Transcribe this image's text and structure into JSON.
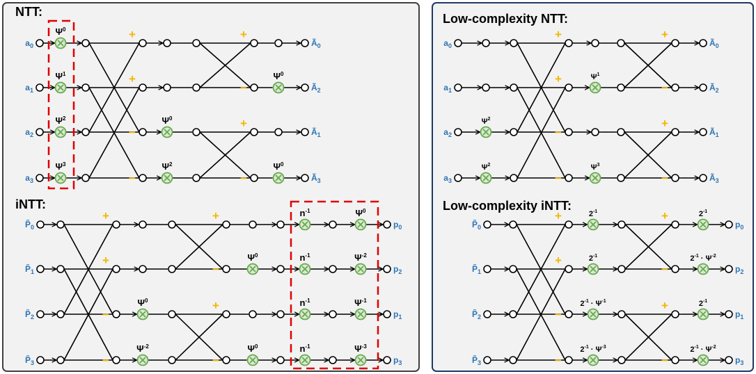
{
  "colors": {
    "panel_left_bg": "#f2f2f2",
    "panel_left_border": "#404040",
    "panel_right_bg": "#f2f2f2",
    "panel_right_border": "#1f3864",
    "label": "#2e75b6",
    "plus_minus": "#f2b800",
    "multiplier_stroke": "#6aa84f",
    "multiplier_fill": "#d9ead3",
    "highlight_box": "#e00000"
  },
  "symbols": {
    "plus": "+",
    "minus": "−"
  },
  "panels": [
    {
      "title": "NTT:",
      "inputs": [
        {
          "base": "a",
          "sub": "0"
        },
        {
          "base": "a",
          "sub": "1"
        },
        {
          "base": "a",
          "sub": "2"
        },
        {
          "base": "a",
          "sub": "3"
        }
      ],
      "outputs": [
        {
          "base": "Ã",
          "sub": "0"
        },
        {
          "base": "Ã",
          "sub": "2"
        },
        {
          "base": "Ã",
          "sub": "1"
        },
        {
          "base": "Ã",
          "sub": "3"
        }
      ],
      "coefficients": [
        {
          "base": "Ψ",
          "sup": "0"
        },
        {
          "base": "Ψ",
          "sup": "1"
        },
        {
          "base": "Ψ",
          "sup": "2"
        },
        {
          "base": "Ψ",
          "sup": "3"
        },
        {
          "base": "Ψ",
          "sup": "0"
        },
        {
          "base": "Ψ",
          "sup": "2"
        },
        {
          "base": "Ψ",
          "sup": "0"
        },
        {
          "base": "Ψ",
          "sup": "0"
        }
      ]
    },
    {
      "title": "iNTT:",
      "inputs": [
        {
          "base": "P̃",
          "sub": "0"
        },
        {
          "base": "P̃",
          "sub": "1"
        },
        {
          "base": "P̃",
          "sub": "2"
        },
        {
          "base": "P̃",
          "sub": "3"
        }
      ],
      "outputs": [
        {
          "base": "p",
          "sub": "0"
        },
        {
          "base": "p",
          "sub": "2"
        },
        {
          "base": "p",
          "sub": "1"
        },
        {
          "base": "p",
          "sub": "3"
        }
      ],
      "coefficients": [
        {
          "base": "Ψ",
          "sup": "0"
        },
        {
          "base": "Ψ",
          "sup": "-2"
        },
        {
          "base": "Ψ",
          "sup": "0"
        },
        {
          "base": "Ψ",
          "sup": "0"
        },
        {
          "base": "n",
          "sup": "-1"
        },
        {
          "base": "n",
          "sup": "-1"
        },
        {
          "base": "n",
          "sup": "-1"
        },
        {
          "base": "n",
          "sup": "-1"
        },
        {
          "base": "Ψ",
          "sup": "0"
        },
        {
          "base": "Ψ",
          "sup": "-2"
        },
        {
          "base": "Ψ",
          "sup": "-1"
        },
        {
          "base": "Ψ",
          "sup": "-3"
        }
      ]
    },
    {
      "title": "Low-complexity NTT:",
      "inputs": [
        {
          "base": "a",
          "sub": "0"
        },
        {
          "base": "a",
          "sub": "1"
        },
        {
          "base": "a",
          "sub": "2"
        },
        {
          "base": "a",
          "sub": "3"
        }
      ],
      "outputs": [
        {
          "base": "Ã",
          "sub": "0"
        },
        {
          "base": "Ã",
          "sub": "2"
        },
        {
          "base": "Ã",
          "sub": "1"
        },
        {
          "base": "Ã",
          "sub": "3"
        }
      ],
      "coefficients": [
        {
          "base": "Ψ",
          "sup": "2"
        },
        {
          "base": "Ψ",
          "sup": "2"
        },
        {
          "base": "Ψ",
          "sup": "1"
        },
        {
          "base": "Ψ",
          "sup": "3"
        }
      ]
    },
    {
      "title": "Low-complexity iNTT:",
      "inputs": [
        {
          "base": "P̃",
          "sub": "0"
        },
        {
          "base": "P̃",
          "sub": "1"
        },
        {
          "base": "P̃",
          "sub": "2"
        },
        {
          "base": "P̃",
          "sub": "3"
        }
      ],
      "outputs": [
        {
          "base": "p",
          "sub": "0"
        },
        {
          "base": "p",
          "sub": "2"
        },
        {
          "base": "p",
          "sub": "1"
        },
        {
          "base": "p",
          "sub": "3"
        }
      ],
      "coefficients": [
        {
          "base": "2",
          "sup": "-1"
        },
        {
          "base": "2",
          "sup": "-1"
        },
        {
          "base": "2",
          "sup": "-1",
          "base2": "Ψ",
          "sup2": "-1"
        },
        {
          "base": "2",
          "sup": "-1",
          "base2": "Ψ",
          "sup2": "-3"
        },
        {
          "base": "2",
          "sup": "-1"
        },
        {
          "base": "2",
          "sup": "-1",
          "base2": "Ψ",
          "sup2": "-2"
        },
        {
          "base": "2",
          "sup": "-1"
        },
        {
          "base": "2",
          "sup": "-1",
          "base2": "Ψ",
          "sup2": "-2"
        }
      ]
    }
  ]
}
